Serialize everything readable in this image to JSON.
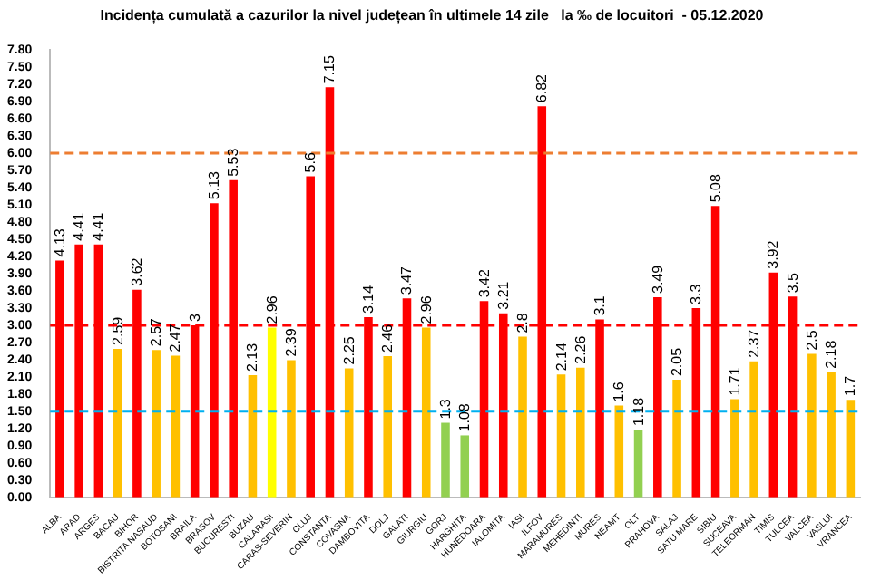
{
  "chart_data": {
    "type": "bar",
    "title": "Incidența cumulată a cazurilor la nivel județean în ultimele 14 zile   la ‰ de locuitori  - 05.12.2020",
    "categories": [
      "ALBA",
      "ARAD",
      "ARGES",
      "BACAU",
      "BIHOR",
      "BISTRITA NASAUD",
      "BOTOSANI",
      "BRAILA",
      "BRASOV",
      "BUCURESTI",
      "BUZAU",
      "CALARASI",
      "CARAS-SEVERIN",
      "CLUJ",
      "CONSTANTA",
      "COVASNA",
      "DAMBOVITA",
      "DOLJ",
      "GALATI",
      "GIURGIU",
      "GORJ",
      "HARGHITA",
      "HUNEDOARA",
      "IALOMITA",
      "IASI",
      "ILFOV",
      "MARAMURES",
      "MEHEDINTI",
      "MURES",
      "NEAMT",
      "OLT",
      "PRAHOVA",
      "SALAJ",
      "SATU MARE",
      "SIBIU",
      "SUCEAVA",
      "TELEORMAN",
      "TIMIS",
      "TULCEA",
      "VALCEA",
      "VASLUI",
      "VRANCEA"
    ],
    "values": [
      4.13,
      4.41,
      4.41,
      2.59,
      3.62,
      2.57,
      2.47,
      3,
      5.13,
      5.53,
      2.13,
      2.96,
      2.39,
      5.6,
      7.15,
      2.25,
      3.14,
      2.46,
      3.47,
      2.96,
      1.3,
      1.08,
      3.42,
      3.21,
      2.8,
      6.82,
      2.14,
      2.26,
      3.1,
      1.6,
      1.18,
      3.49,
      2.05,
      3.3,
      5.08,
      1.71,
      2.37,
      3.92,
      3.5,
      2.5,
      2.18,
      1.7
    ],
    "colors": [
      "#ff0000",
      "#ff0000",
      "#ff0000",
      "#ffc000",
      "#ff0000",
      "#ffc000",
      "#ffc000",
      "#ff0000",
      "#ff0000",
      "#ff0000",
      "#ffc000",
      "#ffff00",
      "#ffc000",
      "#ff0000",
      "#ff0000",
      "#ffc000",
      "#ff0000",
      "#ffc000",
      "#ff0000",
      "#ffc000",
      "#92d050",
      "#92d050",
      "#ff0000",
      "#ff0000",
      "#ffc000",
      "#ff0000",
      "#ffc000",
      "#ffc000",
      "#ff0000",
      "#ffc000",
      "#92d050",
      "#ff0000",
      "#ffc000",
      "#ff0000",
      "#ff0000",
      "#ffc000",
      "#ffc000",
      "#ff0000",
      "#ff0000",
      "#ffc000",
      "#ffc000",
      "#ffc000"
    ],
    "ylim": [
      0,
      7.8
    ],
    "yticks": [
      {
        "value": 0,
        "label": "0.00"
      },
      {
        "value": 0.3,
        "label": "0.30"
      },
      {
        "value": 0.6,
        "label": "0.60"
      },
      {
        "value": 0.9,
        "label": "0.90"
      },
      {
        "value": 1.2,
        "label": "1.20"
      },
      {
        "value": 1.5,
        "label": "1.50"
      },
      {
        "value": 1.8,
        "label": "1.80"
      },
      {
        "value": 2.1,
        "label": "2.10"
      },
      {
        "value": 2.4,
        "label": "2.40"
      },
      {
        "value": 2.7,
        "label": "2.70"
      },
      {
        "value": 3,
        "label": "3.00"
      },
      {
        "value": 3.3,
        "label": "3.30"
      },
      {
        "value": 3.6,
        "label": "3.60"
      },
      {
        "value": 3.9,
        "label": "3.90"
      },
      {
        "value": 4.2,
        "label": "4.20"
      },
      {
        "value": 4.5,
        "label": "4.50"
      },
      {
        "value": 4.8,
        "label": "4.80"
      },
      {
        "value": 5.1,
        "label": "5.10"
      },
      {
        "value": 5.4,
        "label": "5.40"
      },
      {
        "value": 5.7,
        "label": "5.70"
      },
      {
        "value": 6,
        "label": "6.00"
      },
      {
        "value": 6.3,
        "label": "6.30"
      },
      {
        "value": 6.6,
        "label": "6.60"
      },
      {
        "value": 6.9,
        "label": "6.90"
      },
      {
        "value": 7.2,
        "label": "7.20"
      },
      {
        "value": 7.5,
        "label": "7.50"
      },
      {
        "value": 7.8,
        "label": "7.80"
      }
    ],
    "ref_lines": [
      {
        "axis": "y",
        "value": 6,
        "color": "#ed7d31",
        "line_style": "dashed"
      },
      {
        "axis": "y",
        "value": 3,
        "color": "#ff0000",
        "line_style": "dashed"
      },
      {
        "axis": "y",
        "value": 1.5,
        "color": "#00b0f0",
        "line_style": "dashed"
      }
    ],
    "data_labels": true,
    "grid": false,
    "legend": false
  }
}
